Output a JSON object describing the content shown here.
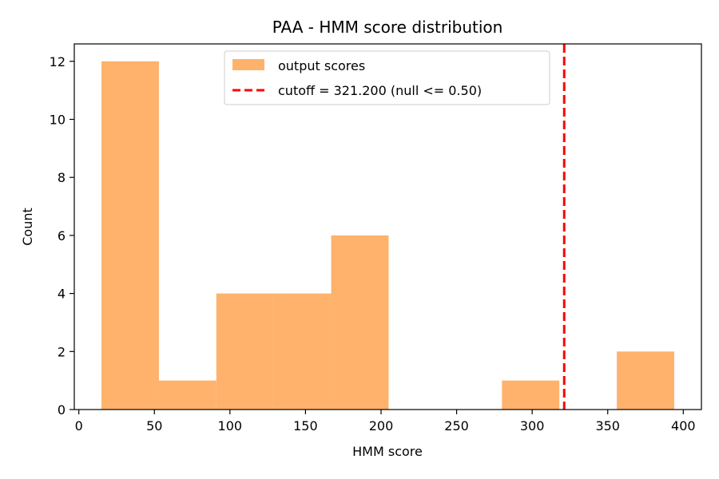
{
  "chart_data": {
    "type": "bar",
    "title": "PAA - HMM score distribution",
    "xlabel": "HMM score",
    "ylabel": "Count",
    "xlim": [
      -3,
      412
    ],
    "ylim": [
      0,
      12.6
    ],
    "xticks": [
      0,
      50,
      100,
      150,
      200,
      250,
      300,
      350,
      400
    ],
    "yticks": [
      0,
      2,
      4,
      6,
      8,
      10,
      12
    ],
    "bin_edges": [
      15,
      53,
      91,
      129,
      167,
      205,
      242,
      280,
      318,
      356,
      394
    ],
    "series": [
      {
        "name": "output scores",
        "color": "#feb26c",
        "values": [
          12,
          1,
          4,
          4,
          6,
          0,
          0,
          1,
          0,
          2
        ]
      }
    ],
    "cutoff": {
      "label": "cutoff = 321.200 (null <= 0.50)",
      "value": 321.2,
      "color": "#ff0000",
      "style": "dashed"
    },
    "legend": "top-center",
    "grid": false
  }
}
